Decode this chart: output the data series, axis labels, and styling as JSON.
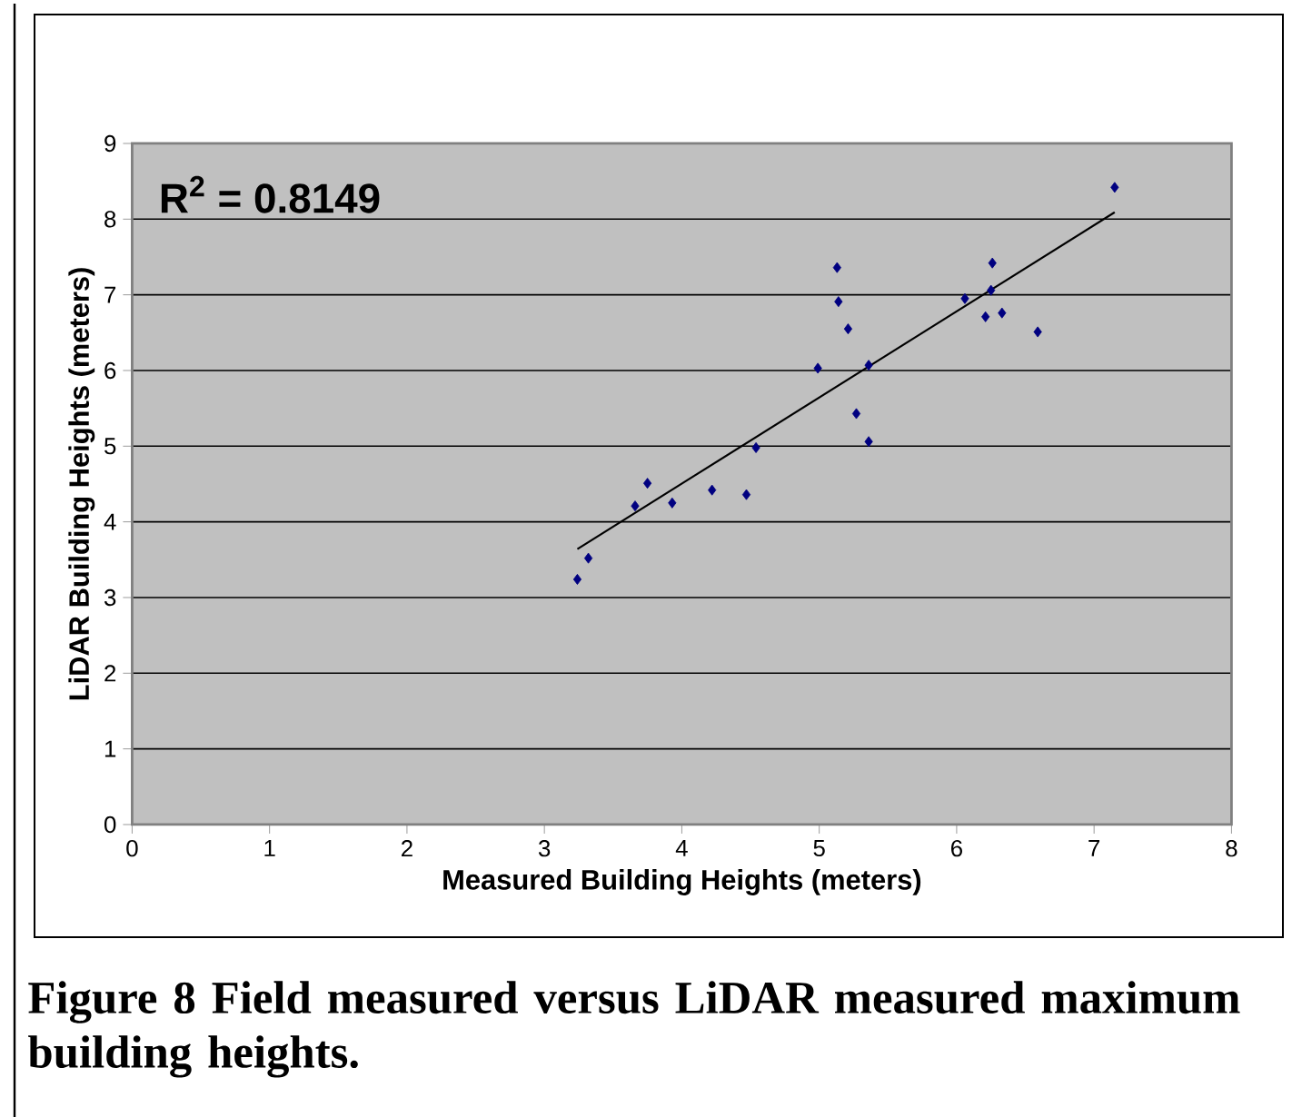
{
  "chart_data": {
    "type": "scatter",
    "xlabel": "Measured Building Heights (meters)",
    "ylabel": "LiDAR Building Heights (meters)",
    "annotations": [
      "R$^{2}$ = 0.8149",
      "Figure 8  Field measured versus LiDAR measured maximum building heights."
    ],
    "series": [
      {
        "color": "#000080",
        "marker": "diamond",
        "x": [
          3.24,
          3.32,
          3.66,
          3.75,
          3.93,
          4.22,
          4.47,
          4.54,
          4.99,
          5.13,
          5.14,
          5.21,
          5.36,
          5.27,
          5.36,
          6.06,
          6.26,
          6.25,
          6.21,
          6.33,
          6.59,
          7.15
        ],
        "values": [
          3.24,
          3.52,
          4.21,
          4.51,
          4.25,
          4.42,
          4.36,
          4.98,
          6.03,
          7.36,
          6.91,
          6.55,
          6.07,
          5.43,
          5.06,
          6.95,
          7.42,
          7.06,
          6.71,
          6.76,
          6.51,
          8.42
        ]
      },
      {
        "type": "line",
        "color": "#000000",
        "line_style": "solid",
        "x": [
          3.24,
          7.15
        ],
        "values": [
          3.64,
          8.09
        ]
      }
    ],
    "xlim": [
      0,
      8
    ],
    "xticks": [
      0,
      1,
      2,
      3,
      4,
      5,
      6,
      7,
      8
    ],
    "ylim": [
      0,
      9
    ],
    "yticks": [
      0,
      1,
      2,
      3,
      4,
      5,
      6,
      7,
      8,
      9
    ],
    "grid": "y"
  }
}
